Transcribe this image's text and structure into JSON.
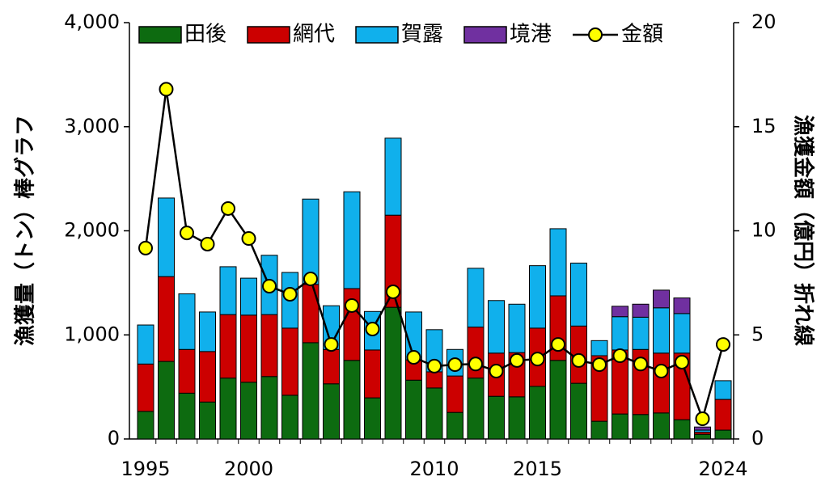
{
  "chart_data": {
    "type": "bar",
    "y_label": "漁獲量（トン）棒グラフ",
    "y2_label": "漁獲金額（億円）折れ線",
    "categories": [
      "1995",
      null,
      null,
      null,
      null,
      "2000",
      null,
      null,
      null,
      null,
      null,
      null,
      null,
      null,
      "2010",
      null,
      null,
      null,
      null,
      "2015",
      null,
      null,
      null,
      null,
      null,
      null,
      null,
      null,
      "2024"
    ],
    "series": [
      {
        "name": "田後",
        "color": "#0d6b10",
        "values": [
          265,
          745,
          440,
          355,
          585,
          545,
          600,
          420,
          925,
          530,
          755,
          395,
          1265,
          565,
          490,
          255,
          585,
          410,
          405,
          505,
          755,
          535,
          170,
          240,
          235,
          250,
          185,
          45,
          85
        ]
      },
      {
        "name": "網代",
        "color": "#cc0000",
        "values": [
          455,
          815,
          420,
          485,
          610,
          645,
          595,
          645,
          560,
          330,
          690,
          460,
          885,
          195,
          155,
          350,
          490,
          415,
          425,
          560,
          620,
          550,
          630,
          615,
          625,
          575,
          640,
          20,
          295
        ]
      },
      {
        "name": "賀露",
        "color": "#10b0ec",
        "values": [
          375,
          755,
          535,
          380,
          460,
          355,
          570,
          535,
          820,
          420,
          930,
          370,
          740,
          460,
          405,
          255,
          565,
          505,
          465,
          600,
          645,
          605,
          145,
          320,
          310,
          435,
          380,
          20,
          180
        ]
      },
      {
        "name": "境港",
        "color": "#7030a0",
        "values": [
          0,
          0,
          0,
          0,
          0,
          0,
          0,
          0,
          0,
          0,
          0,
          0,
          0,
          0,
          0,
          0,
          0,
          0,
          0,
          0,
          0,
          0,
          0,
          100,
          125,
          170,
          150,
          30,
          0
        ]
      },
      {
        "name": "金額",
        "type": "line",
        "axis": "y2",
        "color": "#ffff00",
        "values": [
          9.17,
          16.8,
          9.9,
          9.36,
          11.07,
          9.63,
          7.34,
          6.95,
          7.69,
          4.54,
          6.41,
          5.28,
          7.07,
          3.92,
          3.5,
          3.57,
          3.6,
          3.26,
          3.77,
          3.84,
          4.54,
          3.77,
          3.57,
          4.0,
          3.6,
          3.26,
          3.69,
          0.97,
          4.54
        ]
      }
    ],
    "stacked": true,
    "ylim": [
      0,
      4000
    ],
    "yticks": [
      0,
      {
        "value": 1000,
        "label": "1,000"
      },
      {
        "value": 2000,
        "label": "2,000"
      },
      {
        "value": 3000,
        "label": "3,000"
      },
      {
        "value": 4000,
        "label": "4,000"
      }
    ],
    "y2lim": [
      0,
      20
    ],
    "y2ticks": [
      0,
      5,
      10,
      15,
      20
    ],
    "legend": "top"
  }
}
